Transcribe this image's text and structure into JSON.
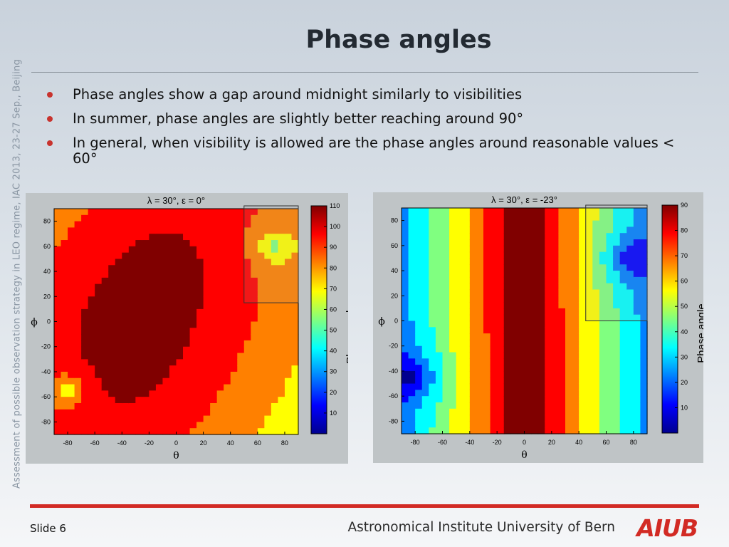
{
  "side_text": "Assessment of possible observation strategy in LEO regime, IAC 2013, 23-27 Sep., Beijing",
  "title": "Phase angles",
  "bullets": [
    "Phase angles show a gap around midnight similarly to visibilities",
    "In summer, phase angles are slightly better reaching around 90°",
    "In general, when visibility is allowed are the phase angles around reasonable values < 60°"
  ],
  "footer": {
    "slide": "Slide 6",
    "institute": "Astronomical Institute University of Bern",
    "logo": "AIUB"
  },
  "chart_data": [
    {
      "type": "heatmap",
      "title": "λ = 30°, ε = 0°",
      "xlabel": "θ",
      "ylabel": "ϕ",
      "xlim": [
        -90,
        90
      ],
      "ylim": [
        -90,
        90
      ],
      "xticks": [
        -80,
        -60,
        -40,
        -20,
        0,
        20,
        40,
        60,
        80
      ],
      "yticks": [
        -80,
        -60,
        -40,
        -20,
        0,
        20,
        40,
        60,
        80
      ],
      "colorbar_label": "Phase angle",
      "colorbar_range": [
        0,
        110
      ],
      "colorbar_ticks": [
        10,
        20,
        30,
        40,
        50,
        60,
        70,
        80,
        90,
        100,
        110
      ],
      "colormap": [
        "#00008f",
        "#0000ff",
        "#0080ff",
        "#00ffff",
        "#80ff80",
        "#ffff00",
        "#ff8000",
        "#ff0000",
        "#800000"
      ],
      "highlight_box": {
        "theta": [
          50,
          90
        ],
        "phi": [
          15,
          90
        ]
      },
      "min_center": [
        -28,
        0
      ],
      "min_spread": [
        40,
        75
      ],
      "min_rot": -25,
      "weak": {
        "center": [
          72,
          60
        ],
        "spread": 10,
        "strength": 9
      },
      "strong": {
        "center": [
          -80,
          -55
        ],
        "spread": 10,
        "strength": 9
      }
    },
    {
      "type": "heatmap",
      "title": "λ = 30°, ε = -23°",
      "xlabel": "θ",
      "ylabel": "ϕ",
      "xlim": [
        -90,
        90
      ],
      "ylim": [
        -90,
        90
      ],
      "xticks": [
        -80,
        -60,
        -40,
        -20,
        0,
        20,
        40,
        60,
        80
      ],
      "yticks": [
        -80,
        -60,
        -40,
        -20,
        0,
        20,
        40,
        60,
        80
      ],
      "colorbar_label": "Phase angle",
      "colorbar_range": [
        0,
        90
      ],
      "colorbar_ticks": [
        10,
        20,
        30,
        40,
        50,
        60,
        70,
        80,
        90
      ],
      "colormap": [
        "#00008f",
        "#0000ff",
        "#0080ff",
        "#00ffff",
        "#80ff80",
        "#ffff00",
        "#ff8000",
        "#ff0000",
        "#800000"
      ],
      "highlight_box": {
        "theta": [
          45,
          90
        ],
        "phi": [
          0,
          90
        ]
      },
      "min_center": [
        0,
        0
      ],
      "min_spread": [
        14,
        300
      ],
      "min_rot": 0,
      "weak": {
        "center": [
          75,
          50
        ],
        "spread": 14,
        "strength": 9
      },
      "strong": {
        "center": [
          -80,
          -45
        ],
        "spread": 14,
        "strength": 9
      }
    }
  ]
}
